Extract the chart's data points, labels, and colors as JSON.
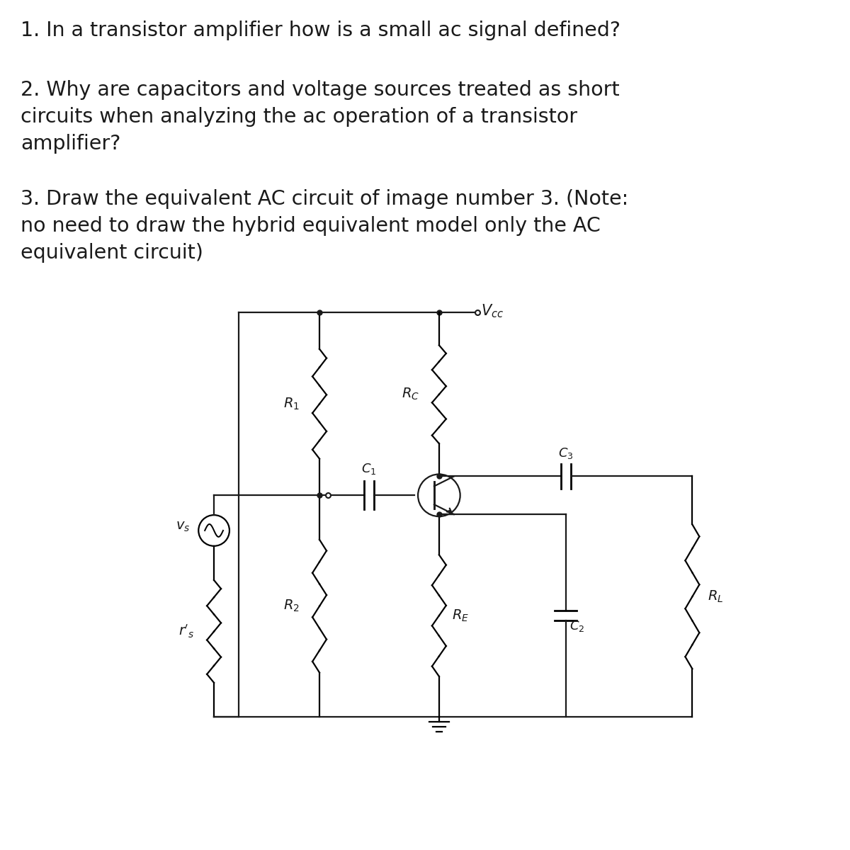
{
  "background_color": "#ffffff",
  "text_color": "#1a1a1a",
  "line_color": "#1a1a1a",
  "q1": "1. In a transistor amplifier how is a small ac signal defined?",
  "q2": "2. Why are capacitors and voltage sources treated as short\ncircuits when analyzing the ac operation of a transistor\namplifier?",
  "q3": "3. Draw the equivalent AC circuit of image number 3. (Note:\nno need to draw the hybrid equivalent model only the AC\nequivalent circuit)",
  "font_size": 20.5,
  "fig_width": 12,
  "fig_height": 12
}
